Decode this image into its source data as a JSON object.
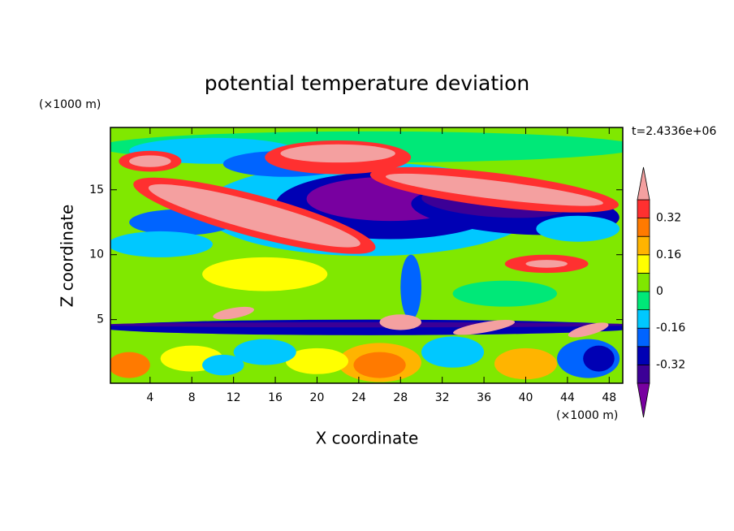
{
  "chart_data": {
    "type": "contour",
    "title": "potential temperature deviation",
    "x_label": "X coordinate",
    "y_label": "Z coordinate",
    "x_unit": "(×1000 m)",
    "y_unit": "(×1000 m)",
    "time_label": "t=2.4336e+06",
    "xlim": [
      0.2,
      49.3
    ],
    "xticks": [
      4,
      8,
      12,
      16,
      20,
      24,
      28,
      32,
      36,
      40,
      44,
      48
    ],
    "ylim": [
      0.1,
      19.8
    ],
    "yticks": [
      5,
      10,
      15
    ],
    "colorbar": {
      "bounds": [
        -0.4,
        -0.32,
        -0.24,
        -0.16,
        -0.08,
        0,
        0.08,
        0.16,
        0.24,
        0.32,
        0.4
      ],
      "colors": [
        "#3c0096",
        "#0000b4",
        "#0064ff",
        "#00c8ff",
        "#00e878",
        "#80e800",
        "#ffff00",
        "#ffb400",
        "#ff7a00",
        "#ff3030"
      ],
      "under_color": "#7800a0",
      "over_color": "#f4a0a0",
      "ticks": [
        -0.32,
        -0.16,
        0,
        0.16,
        0.32
      ]
    }
  }
}
